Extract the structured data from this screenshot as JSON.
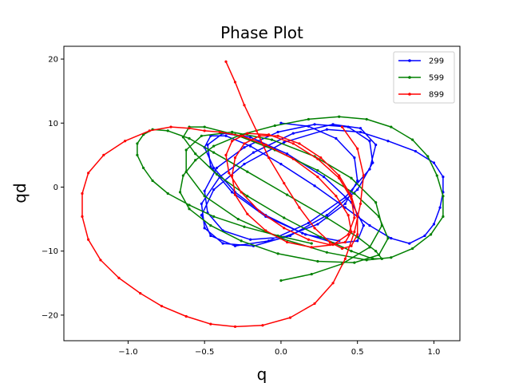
{
  "chart_data": {
    "type": "line",
    "title": "Phase Plot",
    "xlabel": "q",
    "ylabel": "qd",
    "xlim": [
      -1.42,
      1.17
    ],
    "ylim": [
      -24.0,
      22.0
    ],
    "xticks": [
      -1.0,
      -0.5,
      0.0,
      0.5,
      1.0
    ],
    "xtick_labels": [
      "−1.0",
      "−0.5",
      "0.0",
      "0.5",
      "1.0"
    ],
    "yticks": [
      -20,
      -10,
      0,
      10,
      20
    ],
    "ytick_labels": [
      "−20",
      "−10",
      "0",
      "10",
      "20"
    ],
    "grid": false,
    "legend_position": "top-right",
    "series": [
      {
        "name": "299",
        "color": "#0000ff",
        "x": [
          0.0,
          0.18,
          0.36,
          0.48,
          0.5,
          0.42,
          0.24,
          0.02,
          -0.2,
          -0.38,
          -0.48,
          -0.5,
          -0.42,
          -0.24,
          -0.02,
          0.22,
          0.44,
          0.58,
          0.6,
          0.5,
          0.3,
          0.06,
          -0.18,
          -0.38,
          -0.5,
          -0.52,
          -0.4,
          -0.18,
          0.08,
          0.34,
          0.52,
          0.62,
          0.58,
          0.42,
          0.18,
          -0.08,
          -0.3,
          -0.46,
          -0.52,
          -0.44,
          -0.24,
          0.02,
          0.3,
          0.52,
          0.7,
          0.88,
          1.0,
          1.06,
          1.06,
          1.04,
          1.0,
          0.94,
          0.84,
          0.72,
          0.58,
          0.42,
          0.22,
          0.0,
          -0.2,
          -0.36,
          -0.46,
          -0.5,
          -0.44,
          -0.3,
          -0.1,
          0.14,
          0.36,
          0.5,
          0.54,
          0.46,
          0.28,
          0.04,
          -0.2,
          -0.38,
          -0.48,
          -0.46,
          -0.32,
          -0.1,
          0.16,
          0.38
        ],
        "y": [
          10.0,
          9.5,
          7.6,
          4.6,
          1.0,
          -2.6,
          -5.8,
          -7.8,
          -8.2,
          -6.8,
          -4.0,
          -0.6,
          3.0,
          6.2,
          8.6,
          9.8,
          9.4,
          7.2,
          3.8,
          -0.4,
          -4.4,
          -7.6,
          -9.2,
          -8.8,
          -6.4,
          -2.6,
          1.6,
          5.4,
          8.4,
          9.8,
          9.2,
          6.6,
          2.8,
          -1.6,
          -5.6,
          -8.4,
          -9.2,
          -7.6,
          -4.4,
          -0.4,
          3.6,
          7.0,
          9.0,
          8.6,
          7.2,
          5.6,
          3.8,
          1.6,
          -0.8,
          -3.2,
          -5.8,
          -7.6,
          -8.8,
          -8.0,
          -6.0,
          -3.2,
          0.2,
          3.6,
          6.4,
          8.0,
          8.0,
          6.2,
          3.0,
          -0.8,
          -4.4,
          -7.2,
          -8.8,
          -8.4,
          -6.0,
          -2.4,
          1.6,
          5.2,
          7.8,
          8.4,
          6.6,
          3.2,
          -0.8,
          -4.6,
          -7.4,
          -8.4
        ]
      },
      {
        "name": "599",
        "color": "#008000",
        "x": [
          0.0,
          0.2,
          0.4,
          0.58,
          0.66,
          0.62,
          0.46,
          0.22,
          -0.06,
          -0.32,
          -0.52,
          -0.62,
          -0.62,
          -0.5,
          -0.28,
          0.0,
          0.3,
          0.56,
          0.72,
          0.86,
          0.98,
          1.06,
          1.06,
          1.02,
          0.96,
          0.86,
          0.72,
          0.56,
          0.38,
          0.18,
          -0.04,
          -0.26,
          -0.44,
          -0.56,
          -0.64,
          -0.66,
          -0.6,
          -0.46,
          -0.26,
          -0.02,
          0.24,
          0.48,
          0.64,
          0.7,
          0.64,
          0.48,
          0.24,
          -0.04,
          -0.3,
          -0.5,
          -0.6,
          -0.64,
          -0.56,
          -0.42,
          -0.22,
          0.02,
          0.26,
          0.46,
          0.6,
          0.66,
          0.62,
          0.5,
          0.3,
          0.04,
          -0.22,
          -0.44,
          -0.6,
          -0.74,
          -0.84,
          -0.9,
          -0.94,
          -0.94,
          -0.9,
          -0.84,
          -0.74,
          -0.6,
          -0.44,
          -0.24,
          -0.02,
          0.2
        ],
        "y": [
          -14.6,
          -13.6,
          -12.0,
          -9.4,
          -6.0,
          -2.4,
          1.4,
          4.8,
          7.4,
          8.6,
          8.0,
          5.8,
          2.4,
          -1.4,
          -5.0,
          -8.0,
          -10.2,
          -11.4,
          -11.0,
          -9.6,
          -7.4,
          -4.6,
          -1.4,
          1.8,
          4.8,
          7.4,
          9.4,
          10.6,
          11.0,
          10.6,
          9.6,
          8.2,
          6.4,
          4.2,
          1.8,
          -0.8,
          -3.4,
          -6.0,
          -8.4,
          -10.4,
          -11.6,
          -11.8,
          -10.6,
          -8.0,
          -4.6,
          -1.0,
          2.6,
          5.8,
          8.2,
          9.4,
          9.4,
          7.8,
          5.2,
          2.0,
          -1.4,
          -4.8,
          -7.8,
          -10.0,
          -11.2,
          -11.2,
          -10.0,
          -7.8,
          -4.8,
          -1.2,
          2.4,
          5.4,
          7.6,
          8.8,
          9.0,
          8.2,
          6.8,
          5.0,
          3.0,
          1.0,
          -1.0,
          -2.8,
          -4.6,
          -6.2,
          -7.6,
          -8.8
        ]
      },
      {
        "name": "899",
        "color": "#ff0000",
        "x": [
          -0.36,
          -0.3,
          -0.24,
          -0.16,
          -0.08,
          0.02,
          0.12,
          0.22,
          0.32,
          0.4,
          0.46,
          0.5,
          0.5,
          0.46,
          0.38,
          0.26,
          0.12,
          -0.02,
          -0.14,
          -0.24,
          -0.3,
          -0.32,
          -0.3,
          -0.22,
          -0.1,
          0.04,
          0.2,
          0.34,
          0.44,
          0.48,
          0.46,
          0.38,
          0.24,
          0.08,
          -0.08,
          -0.22,
          -0.32,
          -0.36,
          -0.34,
          -0.26,
          -0.14,
          0.02,
          0.18,
          0.32,
          0.42,
          0.46,
          0.44,
          0.36,
          0.24,
          0.08,
          -0.1,
          -0.26,
          -0.4,
          -0.5,
          -0.6,
          -0.72,
          -0.86,
          -1.02,
          -1.16,
          -1.26,
          -1.3,
          -1.3,
          -1.26,
          -1.18,
          -1.06,
          -0.92,
          -0.78,
          -0.62,
          -0.46,
          -0.3,
          -0.12,
          0.06,
          0.22,
          0.34,
          0.42,
          0.48,
          0.52,
          0.54,
          0.5,
          0.4
        ],
        "y": [
          19.6,
          16.4,
          12.8,
          8.8,
          4.6,
          0.6,
          -3.2,
          -6.4,
          -8.6,
          -9.6,
          -9.2,
          -7.4,
          -4.6,
          -1.4,
          1.8,
          4.6,
          6.8,
          8.0,
          8.0,
          6.8,
          4.6,
          1.8,
          -1.2,
          -4.2,
          -6.8,
          -8.6,
          -9.4,
          -9.0,
          -7.4,
          -4.8,
          -1.8,
          1.4,
          4.4,
          6.8,
          8.2,
          8.4,
          7.2,
          5.0,
          2.2,
          -0.8,
          -3.8,
          -6.4,
          -8.2,
          -9.0,
          -8.6,
          -7.0,
          -4.4,
          -1.4,
          1.6,
          4.4,
          6.6,
          8.0,
          8.6,
          8.8,
          9.2,
          9.4,
          8.8,
          7.2,
          5.0,
          2.2,
          -1.0,
          -4.6,
          -8.2,
          -11.4,
          -14.2,
          -16.6,
          -18.6,
          -20.2,
          -21.4,
          -21.8,
          -21.6,
          -20.4,
          -18.2,
          -15.0,
          -11.2,
          -7.0,
          -2.6,
          1.8,
          6.0,
          9.4
        ]
      }
    ]
  }
}
